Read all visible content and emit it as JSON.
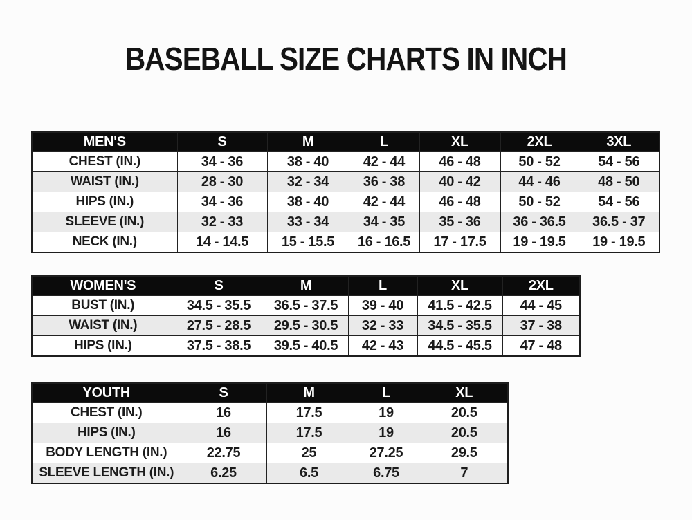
{
  "page": {
    "title": "BASEBALL SIZE CHARTS IN INCH"
  },
  "colors": {
    "page_bg": "#fcfcfc",
    "title_text": "#141414",
    "header_bg": "#0b0b0b",
    "header_text": "#ffffff",
    "row_bg": "#ffffff",
    "row_alt_bg": "#eaeaea",
    "border": "#1e1e1e"
  },
  "chart_data": [
    {
      "type": "table",
      "name": "mens-size-chart",
      "title": "MEN'S",
      "columns": [
        "MEN'S",
        "S",
        "M",
        "L",
        "XL",
        "2XL",
        "3XL"
      ],
      "rows": [
        [
          "CHEST (IN.)",
          "34 - 36",
          "38 - 40",
          "42 - 44",
          "46 - 48",
          "50 - 52",
          "54 - 56"
        ],
        [
          "WAIST (IN.)",
          "28 - 30",
          "32 - 34",
          "36 - 38",
          "40 - 42",
          "44 - 46",
          "48 - 50"
        ],
        [
          "HIPS (IN.)",
          "34 - 36",
          "38 - 40",
          "42 - 44",
          "46 - 48",
          "50 - 52",
          "54 - 56"
        ],
        [
          "SLEEVE (IN.)",
          "32 - 33",
          "33 - 34",
          "34 - 35",
          "35 - 36",
          "36 - 36.5",
          "36.5 - 37"
        ],
        [
          "NECK (IN.)",
          "14 - 14.5",
          "15 - 15.5",
          "16 - 16.5",
          "17 - 17.5",
          "19 - 19.5",
          "19 - 19.5"
        ]
      ]
    },
    {
      "type": "table",
      "name": "womens-size-chart",
      "title": "WOMEN'S",
      "columns": [
        "WOMEN'S",
        "S",
        "M",
        "L",
        "XL",
        "2XL"
      ],
      "rows": [
        [
          "BUST (IN.)",
          "34.5 - 35.5",
          "36.5 - 37.5",
          "39 - 40",
          "41.5 - 42.5",
          "44 - 45"
        ],
        [
          "WAIST (IN.)",
          "27.5 - 28.5",
          "29.5 - 30.5",
          "32 - 33",
          "34.5 - 35.5",
          "37 - 38"
        ],
        [
          "HIPS (IN.)",
          "37.5 - 38.5",
          "39.5 - 40.5",
          "42 - 43",
          "44.5 - 45.5",
          "47 - 48"
        ]
      ]
    },
    {
      "type": "table",
      "name": "youth-size-chart",
      "title": "YOUTH",
      "columns": [
        "YOUTH",
        "S",
        "M",
        "L",
        "XL"
      ],
      "rows": [
        [
          "CHEST (IN.)",
          "16",
          "17.5",
          "19",
          "20.5"
        ],
        [
          "HIPS (IN.)",
          "16",
          "17.5",
          "19",
          "20.5"
        ],
        [
          "BODY LENGTH (IN.)",
          "22.75",
          "25",
          "27.25",
          "29.5"
        ],
        [
          "SLEEVE LENGTH (IN.)",
          "6.25",
          "6.5",
          "6.75",
          "7"
        ]
      ]
    }
  ]
}
